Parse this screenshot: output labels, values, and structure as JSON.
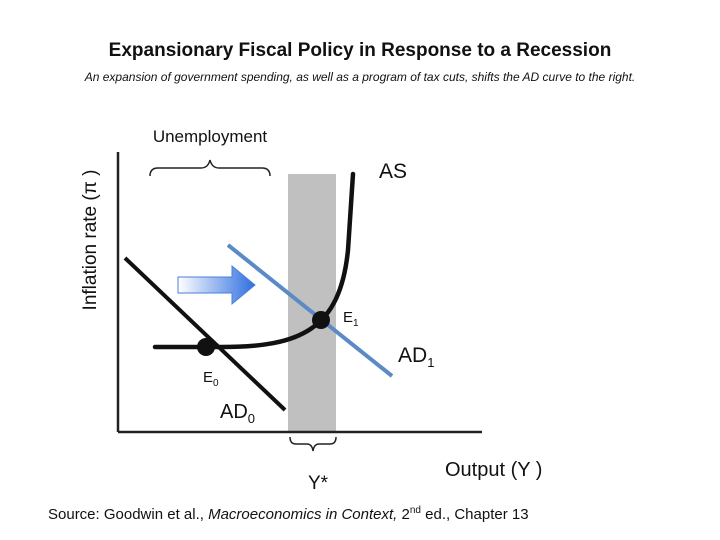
{
  "title": "Expansionary Fiscal Policy in Response to a Recession",
  "subtitle": "An expansion of government spending, as well as a program of tax cuts, shifts the AD curve to the right.",
  "diagram": {
    "y_axis_label": "Inflation rate (π )",
    "x_axis_label": "Output (Y )",
    "potential_output_label": "Y*",
    "unemployment_label": "Unemployment",
    "as_label": "AS",
    "ad0_label": "AD",
    "ad0_sub": "0",
    "ad1_label": "AD",
    "ad1_sub": "1",
    "e0_label": "E",
    "e0_sub": "0",
    "e1_label": "E",
    "e1_sub": "1",
    "colors": {
      "ad1_line": "#5b8ac6",
      "shaded_band": "#c0c0c0",
      "arrow_light": "#ffffff",
      "arrow_dark": "#2f6fe0"
    },
    "icons": {
      "shift": "right-arrow-icon"
    }
  },
  "source": {
    "prefix": "Source: Goodwin et al., ",
    "book": "Macroeconomics in Context,",
    "edition_num": " 2",
    "edition_sup": "nd",
    "suffix": " ed., Chapter 13"
  }
}
